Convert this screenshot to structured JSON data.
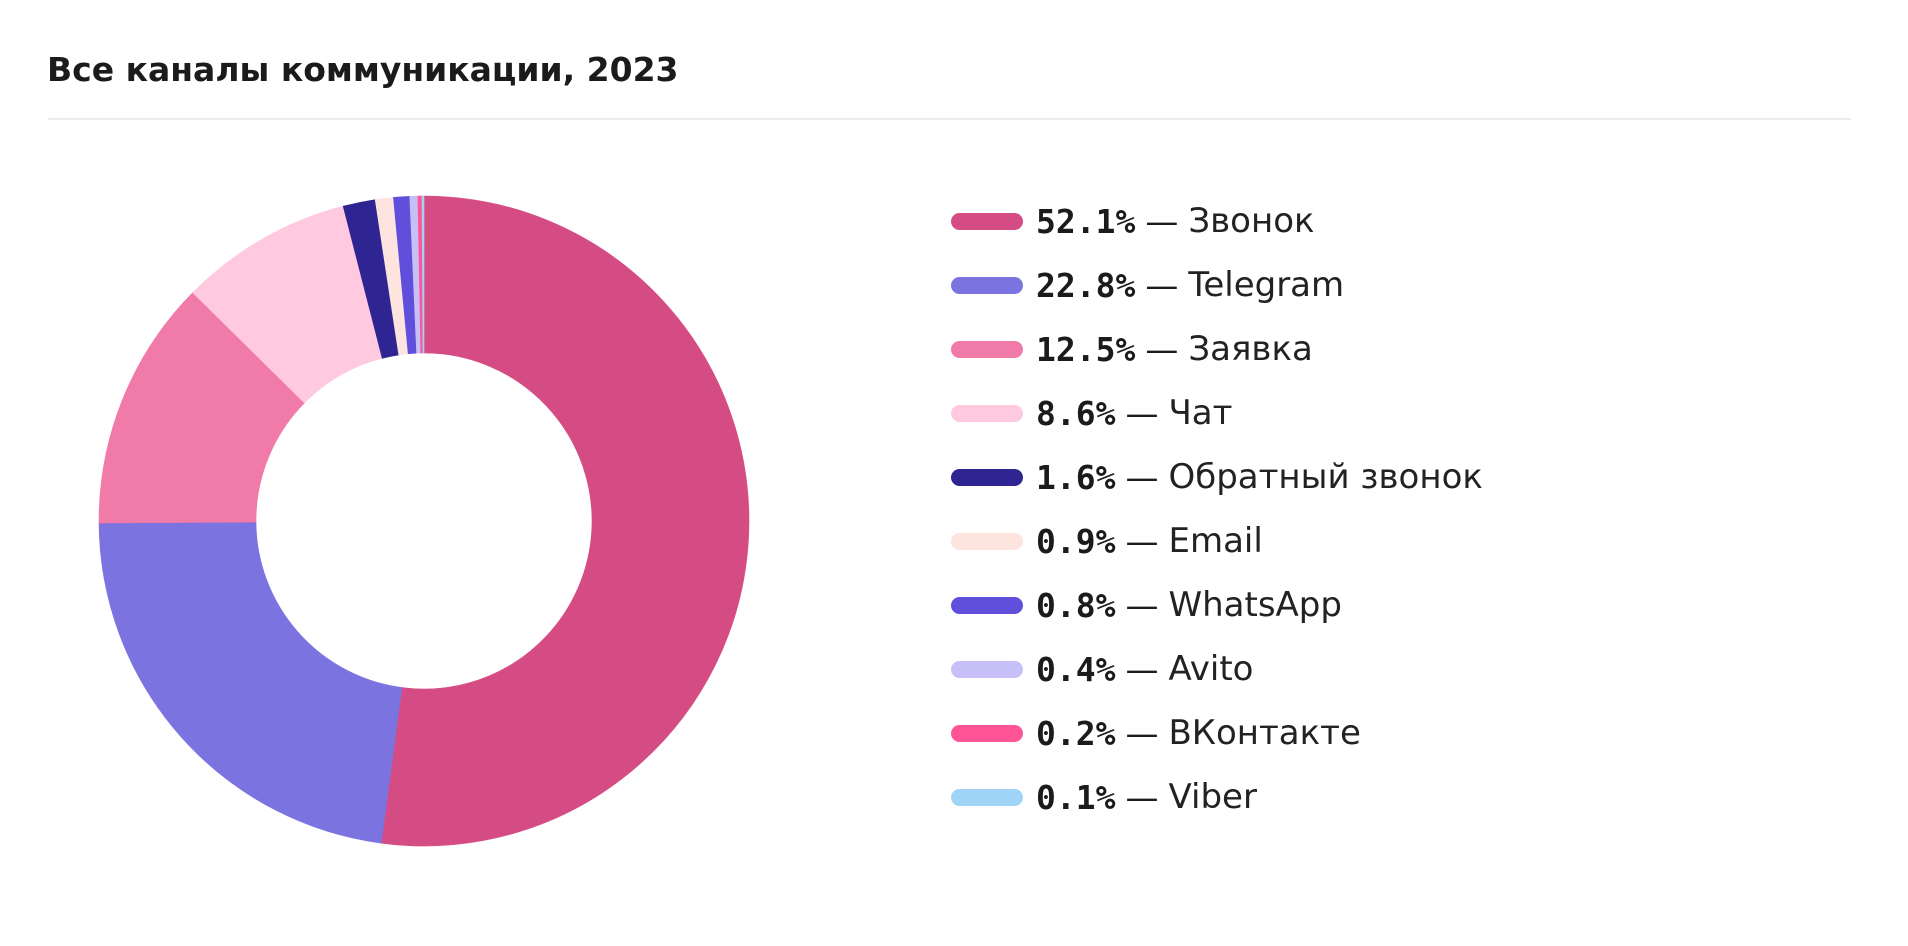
{
  "chart_data": {
    "type": "pie",
    "title": "Все каналы коммуникации, 2023",
    "separator": "—",
    "slices": [
      {
        "label": "Звонок",
        "value": 52.1,
        "display": "52.1%",
        "color": "#d54c85"
      },
      {
        "label": "Telegram",
        "value": 22.8,
        "display": "22.8%",
        "color": "#7b73e0"
      },
      {
        "label": "Заявка",
        "value": 12.5,
        "display": "12.5%",
        "color": "#f07aa8"
      },
      {
        "label": "Чат",
        "value": 8.6,
        "display": "8.6%",
        "color": "#ffc9df"
      },
      {
        "label": "Обратный звонок",
        "value": 1.6,
        "display": "1.6%",
        "color": "#2f2592"
      },
      {
        "label": "Email",
        "value": 0.9,
        "display": "0.9%",
        "color": "#fde4df"
      },
      {
        "label": "WhatsApp",
        "value": 0.8,
        "display": "0.8%",
        "color": "#5f4fdb"
      },
      {
        "label": "Avito",
        "value": 0.4,
        "display": "0.4%",
        "color": "#c7bff8"
      },
      {
        "label": "ВКонтакте",
        "value": 0.2,
        "display": "0.2%",
        "color": "#ff5596"
      },
      {
        "label": "Viber",
        "value": 0.1,
        "display": "0.1%",
        "color": "#9fd4f7"
      }
    ],
    "legend_position": "right",
    "donut": true,
    "direction": "clockwise"
  }
}
